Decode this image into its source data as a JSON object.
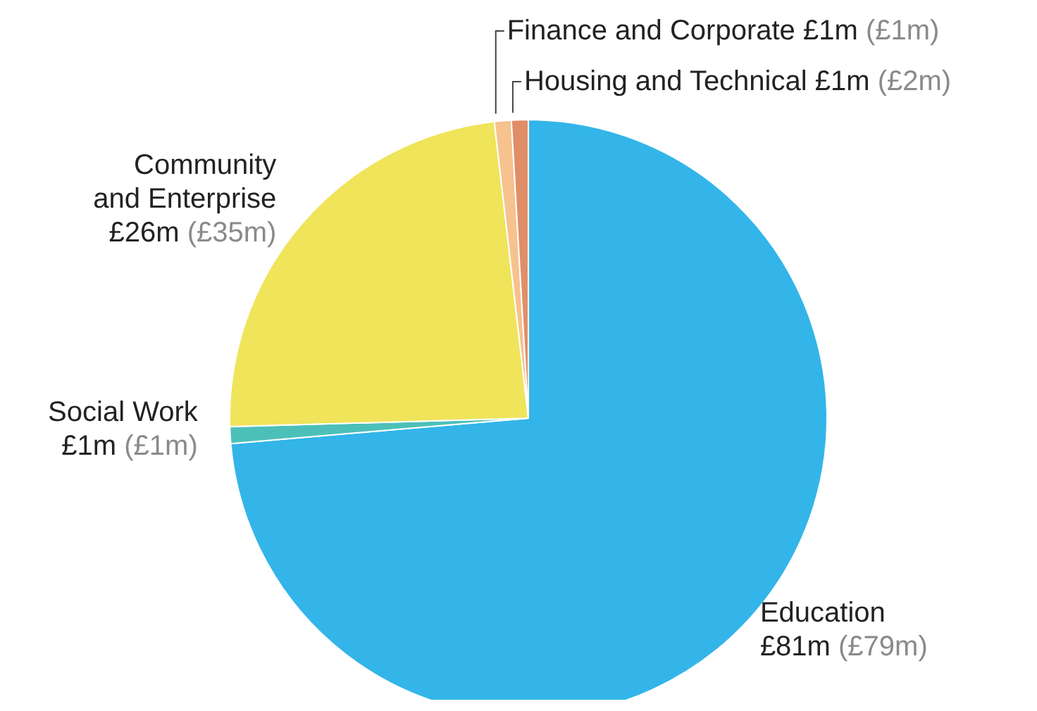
{
  "chart_data": {
    "type": "pie",
    "categories": [
      "Education",
      "Social Work",
      "Community and Enterprise",
      "Finance and Corporate",
      "Housing and Technical"
    ],
    "values": [
      81,
      1,
      26,
      1,
      1
    ],
    "colors": [
      "#33b5e9",
      "#4cc0b8",
      "#efe45a",
      "#f6c28e",
      "#e08e68"
    ],
    "value_labels": [
      "£81m",
      "£1m",
      "£26m",
      "£1m",
      "£1m"
    ],
    "annotations": [
      "(£79m)",
      "(£1m)",
      "(£35m)",
      "(£1m)",
      "(£2m)"
    ],
    "legend": false
  }
}
